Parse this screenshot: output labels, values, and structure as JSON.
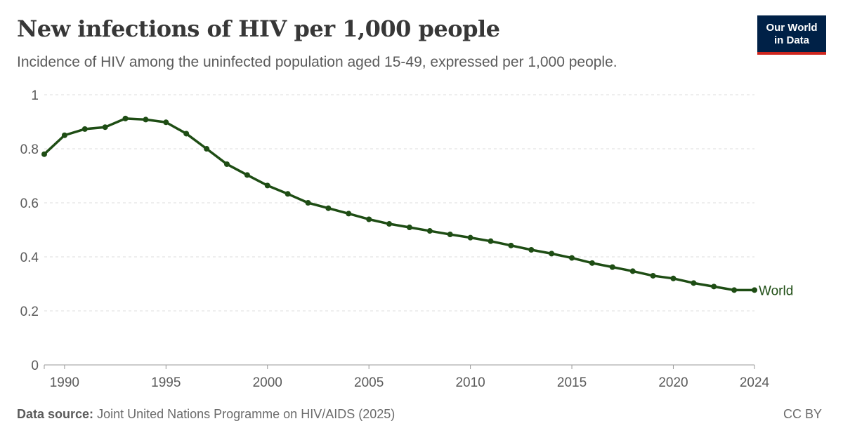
{
  "header": {
    "title": "New infections of HIV per 1,000 people",
    "subtitle": "Incidence of HIV among the uninfected population aged 15-49, expressed per 1,000 people."
  },
  "logo": {
    "line1": "Our World",
    "line2": "in Data",
    "bg_color": "#002147",
    "accent_color": "#ce261e"
  },
  "footer": {
    "source_label": "Data source:",
    "source_text": "Joint United Nations Programme on HIV/AIDS (2025)",
    "license": "CC BY"
  },
  "chart_data": {
    "type": "line",
    "title": "New infections of HIV per 1,000 people",
    "xlabel": "",
    "ylabel": "",
    "xlim": [
      1989,
      2024
    ],
    "ylim": [
      0,
      1
    ],
    "x_ticks": [
      1990,
      1995,
      2000,
      2005,
      2010,
      2015,
      2020,
      2024
    ],
    "y_ticks": [
      0,
      0.2,
      0.4,
      0.6,
      0.8,
      1
    ],
    "y_tick_labels": [
      "0",
      "0.2",
      "0.4",
      "0.6",
      "0.8",
      "1"
    ],
    "grid": "horizontal dashed",
    "series": [
      {
        "name": "World",
        "color": "#1e4d14",
        "x": [
          1989,
          1990,
          1991,
          1992,
          1993,
          1994,
          1995,
          1996,
          1997,
          1998,
          1999,
          2000,
          2001,
          2002,
          2003,
          2004,
          2005,
          2006,
          2007,
          2008,
          2009,
          2010,
          2011,
          2012,
          2013,
          2014,
          2015,
          2016,
          2017,
          2018,
          2019,
          2020,
          2021,
          2022,
          2023,
          2024
        ],
        "y": [
          0.78,
          0.85,
          0.873,
          0.88,
          0.912,
          0.908,
          0.898,
          0.856,
          0.8,
          0.743,
          0.703,
          0.664,
          0.633,
          0.6,
          0.58,
          0.56,
          0.539,
          0.522,
          0.509,
          0.496,
          0.483,
          0.471,
          0.458,
          0.442,
          0.426,
          0.412,
          0.396,
          0.377,
          0.362,
          0.347,
          0.33,
          0.32,
          0.303,
          0.29,
          0.277,
          0.277
        ]
      }
    ]
  }
}
